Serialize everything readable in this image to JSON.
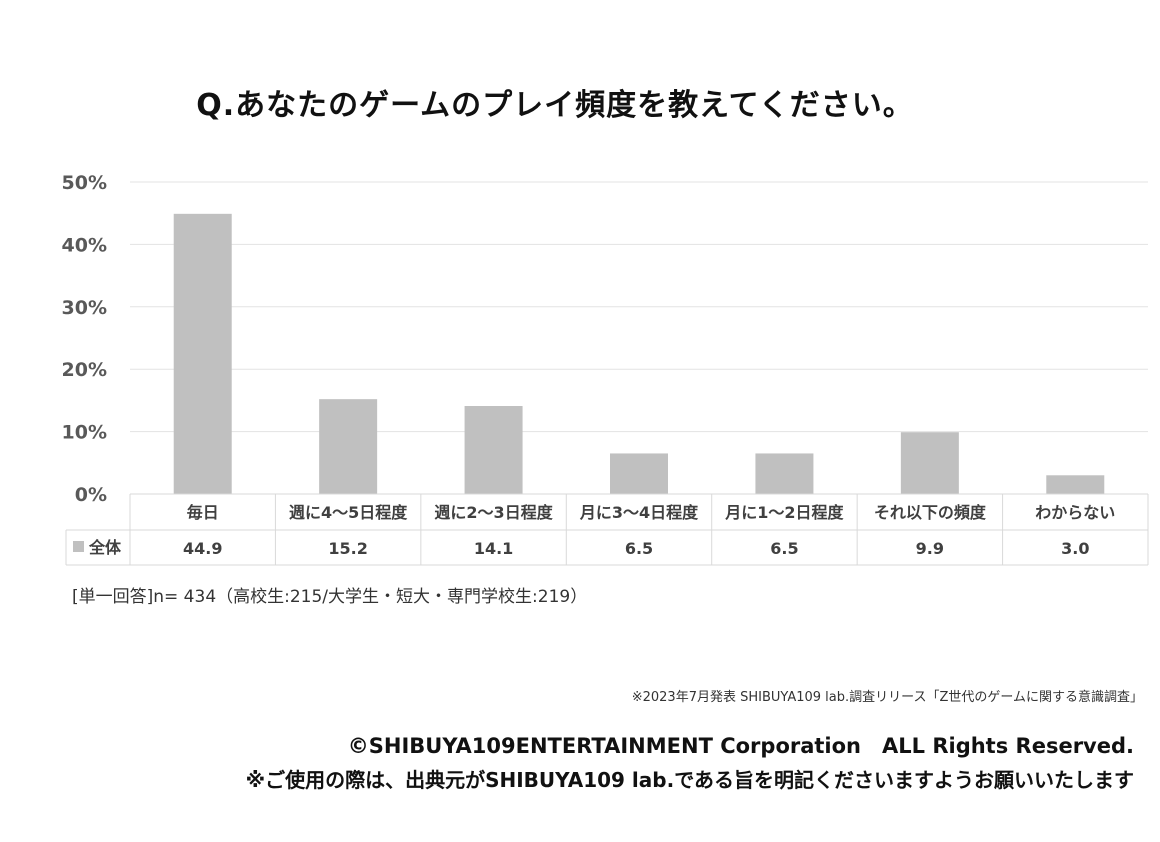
{
  "title": "Q.あなたのゲームのプレイ頻度を教えてください。",
  "chart_data": {
    "type": "bar",
    "categories": [
      "毎日",
      "週に4〜5日程度",
      "週に2〜3日程度",
      "月に3〜4日程度",
      "月に1〜2日程度",
      "それ以下の頻度",
      "わからない"
    ],
    "series": [
      {
        "name": "全体",
        "values": [
          44.9,
          15.2,
          14.1,
          6.5,
          6.5,
          9.9,
          3.0
        ]
      }
    ],
    "data_labels": [
      "44.9",
      "15.2",
      "14.1",
      "6.5",
      "6.5",
      "9.9",
      "3.0"
    ],
    "yticks": [
      "0%",
      "10%",
      "20%",
      "30%",
      "40%",
      "50%"
    ],
    "ylim": [
      0,
      50
    ],
    "grid": true,
    "bar_color": "#c0c0c0",
    "gridline_color": "#e3e3e3",
    "table_border_color": "#d9d9d9"
  },
  "note": "[単一回答]n= 434（高校生:215/大学生・短大・専門学校生:219）",
  "source": "※2023年7月発表 SHIBUYA109 lab.調査リリース「Z世代のゲームに関する意識調査」",
  "copyright": "©SHIBUYA109ENTERTAINMENT Corporation　ALL Rights Reserved.",
  "usage": "※ご使用の際は、出典元がSHIBUYA109 lab.である旨を明記くださいますようお願いいたします"
}
